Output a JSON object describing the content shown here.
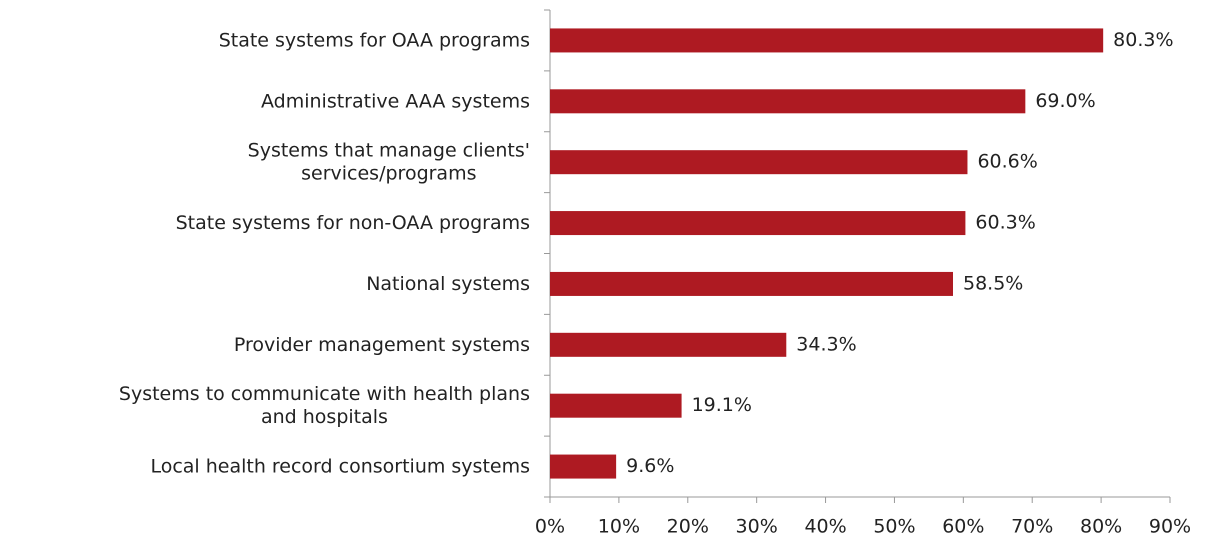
{
  "chart_data": {
    "type": "hbar",
    "categories": [
      "State systems for OAA programs",
      "Administrative AAA systems",
      "Systems that manage clients'\nservices/programs",
      "State systems for non-OAA programs",
      "National systems",
      "Provider management systems",
      "Systems to communicate with health plans\nand hospitals",
      "Local health record consortium systems"
    ],
    "values": [
      80.3,
      69.0,
      60.6,
      60.3,
      58.5,
      34.3,
      19.1,
      9.6
    ],
    "value_labels": [
      "80.3%",
      "69.0%",
      "60.6%",
      "60.3%",
      "58.5%",
      "34.3%",
      "19.1%",
      "9.6%"
    ],
    "color": "#ae1a22",
    "xlim": [
      0,
      90
    ],
    "xticks": [
      {
        "value": 0,
        "label": "0%"
      },
      {
        "value": 10,
        "label": "10%"
      },
      {
        "value": 20,
        "label": "20%"
      },
      {
        "value": 30,
        "label": "30%"
      },
      {
        "value": 40,
        "label": "40%"
      },
      {
        "value": 50,
        "label": "50%"
      },
      {
        "value": 60,
        "label": "60%"
      },
      {
        "value": 70,
        "label": "70%"
      },
      {
        "value": 80,
        "label": "80%"
      },
      {
        "value": 90,
        "label": "90%"
      }
    ],
    "grid": false
  }
}
